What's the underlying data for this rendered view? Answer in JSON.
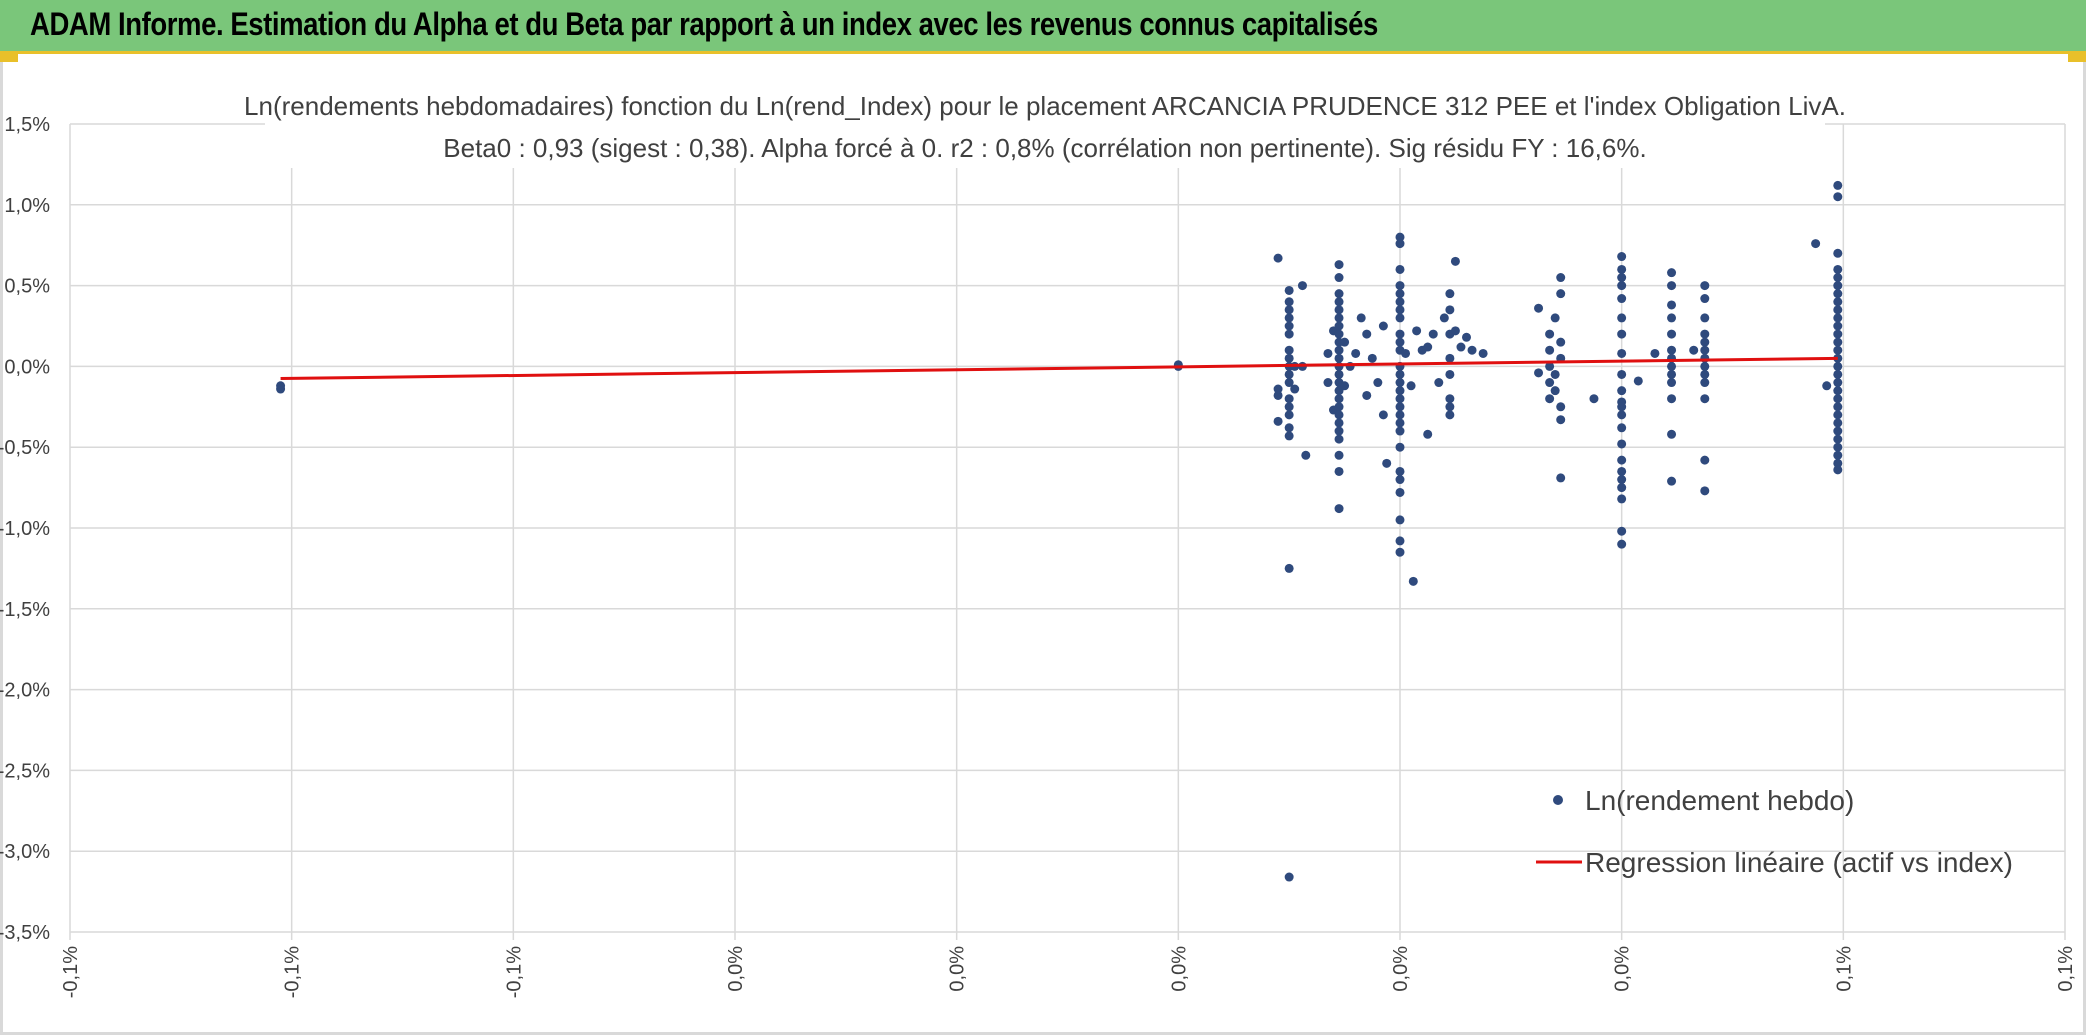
{
  "header": {
    "title": "ADAM Informe. Estimation du Alpha et du Beta par rapport à un index avec les revenus connus capitalisés"
  },
  "colors": {
    "header_bg": "#7ac67a",
    "accent": "#e9c02a",
    "points": "#2f4a7d",
    "regression": "#e01010",
    "grid": "#d9d9d9"
  },
  "chart_data": {
    "type": "scatter",
    "title": "Ln(rendements hebdomadaires) fonction du Ln(rend_Index) pour le placement ARCANCIA PRUDENCE 312 PEE et l'index Obligation LivA.",
    "subtitle": "Beta0 : 0,93 (sigest : 0,38). Alpha forcé à 0. r2 : 0,8% (corrélation non pertinente). Sig résidu FY : 16,6%.",
    "xlabel": "",
    "ylabel": "",
    "ylim": [
      -3.5,
      1.5
    ],
    "yticks": [
      "1,5%",
      "1,0%",
      "0,5%",
      "0,0%",
      "-0,5%",
      "-1,0%",
      "-1,5%",
      "-2,0%",
      "-2,5%",
      "-3,0%",
      "-3,5%"
    ],
    "xlim": [
      -0.12,
      0.06
    ],
    "xticks": [
      "-0,1%",
      "-0,1%",
      "-0,1%",
      "0,0%",
      "0,0%",
      "0,0%",
      "0,0%",
      "0,0%",
      "0,1%",
      "0,1%"
    ],
    "grid": true,
    "legend_position": "bottom-right",
    "series": [
      {
        "name": "Ln(rendement hebdo)",
        "kind": "scatter",
        "points": [
          [
            -0.101,
            -0.14
          ],
          [
            -0.101,
            -0.12
          ],
          [
            -0.02,
            0.0
          ],
          [
            -0.02,
            0.01
          ],
          [
            -0.011,
            0.67
          ],
          [
            -0.011,
            -0.34
          ],
          [
            -0.011,
            -0.18
          ],
          [
            -0.011,
            -0.14
          ],
          [
            -0.01,
            0.47
          ],
          [
            -0.01,
            0.4
          ],
          [
            -0.01,
            0.3
          ],
          [
            -0.01,
            0.2
          ],
          [
            -0.01,
            0.1
          ],
          [
            -0.01,
            0.0
          ],
          [
            -0.01,
            -0.1
          ],
          [
            -0.01,
            -0.2
          ],
          [
            -0.01,
            -0.3
          ],
          [
            -0.01,
            -0.38
          ],
          [
            -0.01,
            -0.43
          ],
          [
            -0.01,
            -1.25
          ],
          [
            -0.01,
            -3.16
          ],
          [
            -0.01,
            0.35
          ],
          [
            -0.01,
            0.25
          ],
          [
            -0.01,
            0.05
          ],
          [
            -0.01,
            -0.05
          ],
          [
            -0.01,
            -0.25
          ],
          [
            -0.0095,
            0.0
          ],
          [
            -0.0095,
            -0.14
          ],
          [
            -0.0088,
            0.5
          ],
          [
            -0.0088,
            0.0
          ],
          [
            -0.0085,
            -0.55
          ],
          [
            -0.0065,
            0.08
          ],
          [
            -0.0065,
            -0.1
          ],
          [
            -0.006,
            0.22
          ],
          [
            -0.006,
            -0.27
          ],
          [
            -0.0055,
            0.63
          ],
          [
            -0.0055,
            0.55
          ],
          [
            -0.0055,
            0.45
          ],
          [
            -0.0055,
            0.35
          ],
          [
            -0.0055,
            0.25
          ],
          [
            -0.0055,
            0.15
          ],
          [
            -0.0055,
            0.05
          ],
          [
            -0.0055,
            -0.05
          ],
          [
            -0.0055,
            -0.15
          ],
          [
            -0.0055,
            -0.25
          ],
          [
            -0.0055,
            -0.35
          ],
          [
            -0.0055,
            -0.45
          ],
          [
            -0.0055,
            -0.55
          ],
          [
            -0.0055,
            -0.65
          ],
          [
            -0.0055,
            -0.88
          ],
          [
            -0.0055,
            0.4
          ],
          [
            -0.0055,
            0.3
          ],
          [
            -0.0055,
            0.2
          ],
          [
            -0.0055,
            0.1
          ],
          [
            -0.0055,
            0.0
          ],
          [
            -0.0055,
            -0.1
          ],
          [
            -0.0055,
            -0.2
          ],
          [
            -0.0055,
            -0.3
          ],
          [
            -0.0055,
            -0.4
          ],
          [
            -0.005,
            0.15
          ],
          [
            -0.005,
            -0.12
          ],
          [
            -0.0045,
            0.0
          ],
          [
            -0.004,
            0.08
          ],
          [
            -0.0035,
            0.3
          ],
          [
            -0.003,
            0.2
          ],
          [
            -0.003,
            -0.18
          ],
          [
            -0.0025,
            0.05
          ],
          [
            -0.002,
            -0.1
          ],
          [
            -0.0015,
            -0.3
          ],
          [
            -0.0015,
            0.25
          ],
          [
            -0.0012,
            -0.6
          ],
          [
            0.0,
            0.8
          ],
          [
            0.0,
            0.76
          ],
          [
            0.0,
            0.6
          ],
          [
            0.0,
            0.5
          ],
          [
            0.0,
            0.4
          ],
          [
            0.0,
            0.3
          ],
          [
            0.0,
            0.2
          ],
          [
            0.0,
            0.1
          ],
          [
            0.0,
            0.0
          ],
          [
            0.0,
            -0.1
          ],
          [
            0.0,
            -0.2
          ],
          [
            0.0,
            -0.3
          ],
          [
            0.0,
            -0.4
          ],
          [
            0.0,
            -0.5
          ],
          [
            0.0,
            -0.65
          ],
          [
            0.0,
            -0.7
          ],
          [
            0.0,
            -0.78
          ],
          [
            0.0,
            -0.95
          ],
          [
            0.0,
            -1.08
          ],
          [
            0.0,
            -1.15
          ],
          [
            0.0,
            0.45
          ],
          [
            0.0,
            0.35
          ],
          [
            0.0,
            0.15
          ],
          [
            0.0,
            -0.05
          ],
          [
            0.0,
            -0.15
          ],
          [
            0.0,
            -0.25
          ],
          [
            0.0,
            -0.35
          ],
          [
            0.0005,
            0.08
          ],
          [
            0.001,
            -0.12
          ],
          [
            0.0012,
            -1.33
          ],
          [
            0.0015,
            0.22
          ],
          [
            0.002,
            0.1
          ],
          [
            0.0025,
            -0.42
          ],
          [
            0.0025,
            0.12
          ],
          [
            0.003,
            0.2
          ],
          [
            0.0035,
            -0.1
          ],
          [
            0.004,
            0.3
          ],
          [
            0.0045,
            0.45
          ],
          [
            0.0045,
            0.35
          ],
          [
            0.0045,
            0.2
          ],
          [
            0.0045,
            0.05
          ],
          [
            0.0045,
            -0.05
          ],
          [
            0.0045,
            -0.2
          ],
          [
            0.0045,
            -0.25
          ],
          [
            0.0045,
            -0.3
          ],
          [
            0.005,
            0.65
          ],
          [
            0.005,
            0.22
          ],
          [
            0.0055,
            0.12
          ],
          [
            0.006,
            0.18
          ],
          [
            0.0065,
            0.1
          ],
          [
            0.0075,
            0.08
          ],
          [
            0.0125,
            0.36
          ],
          [
            0.0125,
            -0.04
          ],
          [
            0.0135,
            0.2
          ],
          [
            0.0135,
            0.1
          ],
          [
            0.0135,
            0.0
          ],
          [
            0.0135,
            -0.1
          ],
          [
            0.0135,
            -0.2
          ],
          [
            0.014,
            0.3
          ],
          [
            0.014,
            -0.05
          ],
          [
            0.014,
            -0.15
          ],
          [
            0.0145,
            0.55
          ],
          [
            0.0145,
            0.45
          ],
          [
            0.0145,
            0.15
          ],
          [
            0.0145,
            0.05
          ],
          [
            0.0145,
            -0.25
          ],
          [
            0.0145,
            -0.33
          ],
          [
            0.0145,
            -0.69
          ],
          [
            0.0175,
            -0.2
          ],
          [
            0.02,
            0.68
          ],
          [
            0.02,
            0.6
          ],
          [
            0.02,
            0.55
          ],
          [
            0.02,
            0.5
          ],
          [
            0.02,
            0.42
          ],
          [
            0.02,
            0.3
          ],
          [
            0.02,
            0.2
          ],
          [
            0.02,
            0.08
          ],
          [
            0.02,
            -0.05
          ],
          [
            0.02,
            -0.22
          ],
          [
            0.02,
            -0.3
          ],
          [
            0.02,
            -0.38
          ],
          [
            0.02,
            -0.48
          ],
          [
            0.02,
            -0.58
          ],
          [
            0.02,
            -0.65
          ],
          [
            0.02,
            -0.7
          ],
          [
            0.02,
            -0.75
          ],
          [
            0.02,
            -0.82
          ],
          [
            0.02,
            -1.02
          ],
          [
            0.02,
            -1.1
          ],
          [
            0.02,
            -0.15
          ],
          [
            0.02,
            -0.25
          ],
          [
            0.0215,
            -0.09
          ],
          [
            0.023,
            0.08
          ],
          [
            0.0245,
            0.58
          ],
          [
            0.0245,
            0.5
          ],
          [
            0.0245,
            0.38
          ],
          [
            0.0245,
            0.3
          ],
          [
            0.0245,
            0.2
          ],
          [
            0.0245,
            0.1
          ],
          [
            0.0245,
            0.0
          ],
          [
            0.0245,
            -0.1
          ],
          [
            0.0245,
            -0.2
          ],
          [
            0.0245,
            -0.42
          ],
          [
            0.0245,
            -0.71
          ],
          [
            0.0245,
            0.05
          ],
          [
            0.0245,
            -0.05
          ],
          [
            0.0265,
            0.1
          ],
          [
            0.0275,
            0.5
          ],
          [
            0.0275,
            0.42
          ],
          [
            0.0275,
            0.3
          ],
          [
            0.0275,
            0.2
          ],
          [
            0.0275,
            0.1
          ],
          [
            0.0275,
            0.0
          ],
          [
            0.0275,
            -0.1
          ],
          [
            0.0275,
            -0.2
          ],
          [
            0.0275,
            -0.58
          ],
          [
            0.0275,
            -0.77
          ],
          [
            0.0275,
            0.05
          ],
          [
            0.0275,
            -0.05
          ],
          [
            0.0275,
            0.15
          ],
          [
            0.0375,
            0.76
          ],
          [
            0.0385,
            -0.12
          ],
          [
            0.0395,
            1.12
          ],
          [
            0.0395,
            1.05
          ],
          [
            0.0395,
            0.7
          ],
          [
            0.0395,
            0.6
          ],
          [
            0.0395,
            0.5
          ],
          [
            0.0395,
            0.4
          ],
          [
            0.0395,
            0.3
          ],
          [
            0.0395,
            0.2
          ],
          [
            0.0395,
            0.1
          ],
          [
            0.0395,
            0.0
          ],
          [
            0.0395,
            -0.1
          ],
          [
            0.0395,
            -0.2
          ],
          [
            0.0395,
            -0.3
          ],
          [
            0.0395,
            -0.4
          ],
          [
            0.0395,
            -0.5
          ],
          [
            0.0395,
            -0.6
          ],
          [
            0.0395,
            -0.64
          ],
          [
            0.0395,
            0.55
          ],
          [
            0.0395,
            0.45
          ],
          [
            0.0395,
            0.35
          ],
          [
            0.0395,
            0.25
          ],
          [
            0.0395,
            0.15
          ],
          [
            0.0395,
            0.05
          ],
          [
            0.0395,
            -0.05
          ],
          [
            0.0395,
            -0.15
          ],
          [
            0.0395,
            -0.25
          ],
          [
            0.0395,
            -0.35
          ],
          [
            0.0395,
            -0.45
          ],
          [
            0.0395,
            -0.55
          ]
        ]
      },
      {
        "name": "Regression linéaire (actif vs index)",
        "kind": "line",
        "points": [
          [
            -0.101,
            -0.075
          ],
          [
            0.0395,
            0.05
          ]
        ]
      }
    ]
  }
}
